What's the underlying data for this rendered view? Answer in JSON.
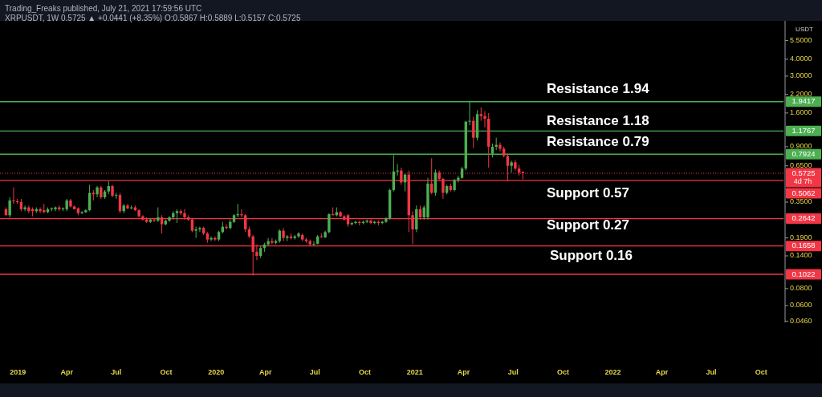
{
  "chart_data": {
    "type": "candlestick",
    "log": true,
    "xlim": [
      "2018-11-29",
      "2022-11-11"
    ],
    "xticks": [
      {
        "value": "2019-01-01",
        "label": "2019"
      },
      {
        "value": "2019-04-01",
        "label": "Apr"
      },
      {
        "value": "2019-07-01",
        "label": "Jul"
      },
      {
        "value": "2019-10-01",
        "label": "Oct"
      },
      {
        "value": "2020-01-01",
        "label": "2020"
      },
      {
        "value": "2020-04-01",
        "label": "Apr"
      },
      {
        "value": "2020-07-01",
        "label": "Jul"
      },
      {
        "value": "2020-10-01",
        "label": "Oct"
      },
      {
        "value": "2021-01-01",
        "label": "2021"
      },
      {
        "value": "2021-04-01",
        "label": "Apr"
      },
      {
        "value": "2021-07-01",
        "label": "Jul"
      },
      {
        "value": "2021-10-01",
        "label": "Oct"
      },
      {
        "value": "2022-01-01",
        "label": "2022"
      },
      {
        "value": "2022-04-01",
        "label": "Apr"
      },
      {
        "value": "2022-07-01",
        "label": "Jul"
      },
      {
        "value": "2022-10-01",
        "label": "Oct"
      }
    ],
    "ylim": [
      0.045,
      7.7
    ],
    "yticks": [
      {
        "value": 0.046,
        "label": "0.0460"
      },
      {
        "value": 0.06,
        "label": "0.0600"
      },
      {
        "value": 0.08,
        "label": "0.0800"
      },
      {
        "value": 0.14,
        "label": "0.1400"
      },
      {
        "value": 0.19,
        "label": "0.1900"
      },
      {
        "value": 0.35,
        "label": "0.3500"
      },
      {
        "value": 0.65,
        "label": "0.6500"
      },
      {
        "value": 0.9,
        "label": "0.9000"
      },
      {
        "value": 1.6,
        "label": "1.6000"
      },
      {
        "value": 2.2,
        "label": "2.2000"
      },
      {
        "value": 3,
        "label": "3.0000"
      },
      {
        "value": 4,
        "label": "4.0000"
      },
      {
        "value": 5.5,
        "label": "5.5000"
      }
    ],
    "x": [
      "2018-12-10",
      "2018-12-17",
      "2018-12-24",
      "2018-12-31",
      "2019-01-07",
      "2019-01-14",
      "2019-01-21",
      "2019-01-28",
      "2019-02-04",
      "2019-02-11",
      "2019-02-18",
      "2019-02-25",
      "2019-03-04",
      "2019-03-11",
      "2019-03-18",
      "2019-03-25",
      "2019-04-01",
      "2019-04-08",
      "2019-04-15",
      "2019-04-22",
      "2019-04-29",
      "2019-05-06",
      "2019-05-13",
      "2019-05-20",
      "2019-05-27",
      "2019-06-03",
      "2019-06-10",
      "2019-06-17",
      "2019-06-24",
      "2019-07-01",
      "2019-07-08",
      "2019-07-15",
      "2019-07-22",
      "2019-07-29",
      "2019-08-05",
      "2019-08-12",
      "2019-08-19",
      "2019-08-26",
      "2019-09-02",
      "2019-09-09",
      "2019-09-16",
      "2019-09-23",
      "2019-09-30",
      "2019-10-07",
      "2019-10-14",
      "2019-10-21",
      "2019-10-28",
      "2019-11-04",
      "2019-11-11",
      "2019-11-18",
      "2019-11-25",
      "2019-12-02",
      "2019-12-09",
      "2019-12-16",
      "2019-12-23",
      "2019-12-30",
      "2020-01-06",
      "2020-01-13",
      "2020-01-20",
      "2020-01-27",
      "2020-02-03",
      "2020-02-10",
      "2020-02-17",
      "2020-02-24",
      "2020-03-02",
      "2020-03-09",
      "2020-03-16",
      "2020-03-23",
      "2020-03-30",
      "2020-04-06",
      "2020-04-13",
      "2020-04-20",
      "2020-04-27",
      "2020-05-04",
      "2020-05-11",
      "2020-05-18",
      "2020-05-25",
      "2020-06-01",
      "2020-06-08",
      "2020-06-15",
      "2020-06-22",
      "2020-06-29",
      "2020-07-06",
      "2020-07-13",
      "2020-07-20",
      "2020-07-27",
      "2020-08-03",
      "2020-08-10",
      "2020-08-17",
      "2020-08-24",
      "2020-08-31",
      "2020-09-07",
      "2020-09-14",
      "2020-09-21",
      "2020-09-28",
      "2020-10-05",
      "2020-10-12",
      "2020-10-19",
      "2020-10-26",
      "2020-11-02",
      "2020-11-09",
      "2020-11-16",
      "2020-11-23",
      "2020-11-30",
      "2020-12-07",
      "2020-12-14",
      "2020-12-21",
      "2020-12-28",
      "2021-01-04",
      "2021-01-11",
      "2021-01-18",
      "2021-01-25",
      "2021-02-01",
      "2021-02-08",
      "2021-02-15",
      "2021-02-22",
      "2021-03-01",
      "2021-03-08",
      "2021-03-15",
      "2021-03-22",
      "2021-03-29",
      "2021-04-05",
      "2021-04-12",
      "2021-04-19",
      "2021-04-26",
      "2021-05-03",
      "2021-05-10",
      "2021-05-17",
      "2021-05-24",
      "2021-05-31",
      "2021-06-07",
      "2021-06-14",
      "2021-06-21",
      "2021-06-28",
      "2021-07-05",
      "2021-07-12",
      "2021-07-19"
    ],
    "ohlc": [
      [
        0.31,
        0.32,
        0.28,
        0.28
      ],
      [
        0.28,
        0.38,
        0.27,
        0.36
      ],
      [
        0.36,
        0.45,
        0.34,
        0.355
      ],
      [
        0.355,
        0.37,
        0.34,
        0.35
      ],
      [
        0.35,
        0.37,
        0.3,
        0.31
      ],
      [
        0.31,
        0.33,
        0.3,
        0.32
      ],
      [
        0.32,
        0.33,
        0.29,
        0.3
      ],
      [
        0.31,
        0.32,
        0.275,
        0.3
      ],
      [
        0.3,
        0.32,
        0.29,
        0.31
      ],
      [
        0.31,
        0.32,
        0.29,
        0.3
      ],
      [
        0.305,
        0.34,
        0.29,
        0.295
      ],
      [
        0.295,
        0.32,
        0.29,
        0.31
      ],
      [
        0.31,
        0.32,
        0.3,
        0.315
      ],
      [
        0.31,
        0.325,
        0.3,
        0.32
      ],
      [
        0.32,
        0.33,
        0.3,
        0.31
      ],
      [
        0.31,
        0.32,
        0.3,
        0.315
      ],
      [
        0.31,
        0.37,
        0.3,
        0.36
      ],
      [
        0.36,
        0.37,
        0.32,
        0.325
      ],
      [
        0.325,
        0.33,
        0.31,
        0.31
      ],
      [
        0.315,
        0.32,
        0.28,
        0.29
      ],
      [
        0.29,
        0.3,
        0.285,
        0.295
      ],
      [
        0.295,
        0.31,
        0.29,
        0.305
      ],
      [
        0.305,
        0.47,
        0.3,
        0.41
      ],
      [
        0.41,
        0.43,
        0.36,
        0.4
      ],
      [
        0.4,
        0.46,
        0.38,
        0.45
      ],
      [
        0.45,
        0.46,
        0.37,
        0.38
      ],
      [
        0.38,
        0.43,
        0.37,
        0.42
      ],
      [
        0.42,
        0.5,
        0.4,
        0.46
      ],
      [
        0.46,
        0.47,
        0.38,
        0.39
      ],
      [
        0.39,
        0.41,
        0.37,
        0.395
      ],
      [
        0.395,
        0.41,
        0.29,
        0.3
      ],
      [
        0.3,
        0.34,
        0.29,
        0.33
      ],
      [
        0.33,
        0.34,
        0.31,
        0.315
      ],
      [
        0.315,
        0.33,
        0.31,
        0.32
      ],
      [
        0.32,
        0.33,
        0.3,
        0.305
      ],
      [
        0.305,
        0.31,
        0.27,
        0.275
      ],
      [
        0.275,
        0.28,
        0.255,
        0.26
      ],
      [
        0.26,
        0.27,
        0.245,
        0.25
      ],
      [
        0.25,
        0.265,
        0.245,
        0.26
      ],
      [
        0.26,
        0.265,
        0.25,
        0.255
      ],
      [
        0.255,
        0.32,
        0.25,
        0.27
      ],
      [
        0.27,
        0.28,
        0.205,
        0.24
      ],
      [
        0.24,
        0.26,
        0.235,
        0.255
      ],
      [
        0.255,
        0.275,
        0.25,
        0.27
      ],
      [
        0.27,
        0.3,
        0.26,
        0.29
      ],
      [
        0.29,
        0.31,
        0.245,
        0.3
      ],
      [
        0.3,
        0.31,
        0.28,
        0.29
      ],
      [
        0.29,
        0.31,
        0.26,
        0.27
      ],
      [
        0.27,
        0.28,
        0.255,
        0.26
      ],
      [
        0.26,
        0.265,
        0.21,
        0.215
      ],
      [
        0.215,
        0.23,
        0.19,
        0.22
      ],
      [
        0.22,
        0.23,
        0.21,
        0.225
      ],
      [
        0.225,
        0.23,
        0.2,
        0.205
      ],
      [
        0.205,
        0.21,
        0.175,
        0.185
      ],
      [
        0.185,
        0.195,
        0.18,
        0.19
      ],
      [
        0.19,
        0.195,
        0.18,
        0.185
      ],
      [
        0.185,
        0.215,
        0.18,
        0.21
      ],
      [
        0.21,
        0.25,
        0.205,
        0.23
      ],
      [
        0.23,
        0.24,
        0.22,
        0.225
      ],
      [
        0.225,
        0.26,
        0.22,
        0.25
      ],
      [
        0.25,
        0.285,
        0.245,
        0.28
      ],
      [
        0.28,
        0.34,
        0.27,
        0.285
      ],
      [
        0.285,
        0.31,
        0.27,
        0.28
      ],
      [
        0.28,
        0.285,
        0.21,
        0.22
      ],
      [
        0.22,
        0.23,
        0.19,
        0.195
      ],
      [
        0.195,
        0.2,
        0.1,
        0.15
      ],
      [
        0.15,
        0.17,
        0.13,
        0.14
      ],
      [
        0.14,
        0.165,
        0.135,
        0.16
      ],
      [
        0.16,
        0.175,
        0.15,
        0.17
      ],
      [
        0.17,
        0.19,
        0.165,
        0.18
      ],
      [
        0.18,
        0.19,
        0.17,
        0.175
      ],
      [
        0.175,
        0.185,
        0.17,
        0.18
      ],
      [
        0.18,
        0.22,
        0.175,
        0.215
      ],
      [
        0.215,
        0.225,
        0.18,
        0.19
      ],
      [
        0.19,
        0.2,
        0.18,
        0.195
      ],
      [
        0.195,
        0.205,
        0.185,
        0.19
      ],
      [
        0.19,
        0.2,
        0.185,
        0.195
      ],
      [
        0.195,
        0.21,
        0.19,
        0.205
      ],
      [
        0.2,
        0.205,
        0.18,
        0.185
      ],
      [
        0.185,
        0.19,
        0.175,
        0.18
      ],
      [
        0.18,
        0.185,
        0.165,
        0.17
      ],
      [
        0.17,
        0.18,
        0.165,
        0.172
      ],
      [
        0.172,
        0.2,
        0.17,
        0.195
      ],
      [
        0.195,
        0.205,
        0.19,
        0.192
      ],
      [
        0.192,
        0.215,
        0.19,
        0.21
      ],
      [
        0.21,
        0.29,
        0.205,
        0.285
      ],
      [
        0.285,
        0.32,
        0.28,
        0.28
      ],
      [
        0.28,
        0.32,
        0.275,
        0.295
      ],
      [
        0.295,
        0.3,
        0.27,
        0.275
      ],
      [
        0.275,
        0.28,
        0.255,
        0.26
      ],
      [
        0.28,
        0.285,
        0.23,
        0.24
      ],
      [
        0.24,
        0.25,
        0.235,
        0.245
      ],
      [
        0.245,
        0.255,
        0.24,
        0.25
      ],
      [
        0.25,
        0.255,
        0.235,
        0.245
      ],
      [
        0.245,
        0.255,
        0.24,
        0.25
      ],
      [
        0.25,
        0.26,
        0.245,
        0.255
      ],
      [
        0.255,
        0.26,
        0.24,
        0.245
      ],
      [
        0.245,
        0.255,
        0.24,
        0.25
      ],
      [
        0.25,
        0.255,
        0.235,
        0.245
      ],
      [
        0.245,
        0.255,
        0.24,
        0.25
      ],
      [
        0.25,
        0.27,
        0.245,
        0.265
      ],
      [
        0.265,
        0.44,
        0.26,
        0.43
      ],
      [
        0.43,
        0.78,
        0.42,
        0.59
      ],
      [
        0.59,
        0.67,
        0.55,
        0.6
      ],
      [
        0.6,
        0.63,
        0.47,
        0.49
      ],
      [
        0.49,
        0.57,
        0.42,
        0.56
      ],
      [
        0.56,
        0.6,
        0.21,
        0.28
      ],
      [
        0.28,
        0.3,
        0.17,
        0.22
      ],
      [
        0.22,
        0.33,
        0.21,
        0.31
      ],
      [
        0.31,
        0.33,
        0.26,
        0.27
      ],
      [
        0.27,
        0.33,
        0.26,
        0.32
      ],
      [
        0.27,
        0.53,
        0.26,
        0.48
      ],
      [
        0.48,
        0.74,
        0.4,
        0.41
      ],
      [
        0.41,
        0.61,
        0.39,
        0.58
      ],
      [
        0.58,
        0.6,
        0.51,
        0.52
      ],
      [
        0.52,
        0.53,
        0.37,
        0.41
      ],
      [
        0.41,
        0.47,
        0.4,
        0.46
      ],
      [
        0.46,
        0.48,
        0.42,
        0.43
      ],
      [
        0.43,
        0.52,
        0.42,
        0.51
      ],
      [
        0.51,
        0.55,
        0.49,
        0.53
      ],
      [
        0.53,
        0.64,
        0.52,
        0.62
      ],
      [
        0.62,
        1.4,
        0.6,
        1.38
      ],
      [
        1.38,
        1.96,
        1.3,
        1.4
      ],
      [
        1.4,
        1.5,
        0.88,
        1.05
      ],
      [
        1.05,
        1.68,
        1,
        1.57
      ],
      [
        1.57,
        1.76,
        1.4,
        1.52
      ],
      [
        1.52,
        1.65,
        1.25,
        1.45
      ],
      [
        1.45,
        1.6,
        0.63,
        0.9
      ],
      [
        0.8,
        0.95,
        0.75,
        0.9
      ],
      [
        0.9,
        1.05,
        0.85,
        0.93
      ],
      [
        0.93,
        0.97,
        0.83,
        0.87
      ],
      [
        0.87,
        0.9,
        0.75,
        0.77
      ],
      [
        0.77,
        0.8,
        0.5,
        0.65
      ],
      [
        0.65,
        0.71,
        0.58,
        0.69
      ],
      [
        0.69,
        0.72,
        0.6,
        0.62
      ],
      [
        0.62,
        0.66,
        0.55,
        0.58
      ],
      [
        0.5867,
        0.5889,
        0.5157,
        0.5725
      ]
    ],
    "ref_lines": [
      {
        "axis": "y",
        "value": 1.9417,
        "label": "1.9417",
        "color": "#4caf50"
      },
      {
        "axis": "y",
        "value": 1.1767,
        "label": "1.1767",
        "color": "#4caf50"
      },
      {
        "axis": "y",
        "value": 0.7924,
        "label": "0.7924",
        "color": "#4caf50"
      },
      {
        "axis": "y",
        "value": 0.5725,
        "label": "0.5725",
        "color": "#f23645",
        "line_style": "dotted"
      },
      {
        "axis": "y",
        "value": 0.5062,
        "label": "0.5062",
        "color": "#f23645"
      },
      {
        "axis": "y",
        "value": 0.2642,
        "label": "0.2642",
        "color": "#f23645"
      },
      {
        "axis": "y",
        "value": 0.1658,
        "label": "0.1658",
        "color": "#f23645"
      },
      {
        "axis": "y",
        "value": 0.1022,
        "label": "0.1022",
        "color": "#f23645"
      }
    ],
    "annotations": [
      "Trading_Freaks published, July 21, 2021 17:59:56 UTC",
      "XRPUSDT, 1W  0.5725 ▲ +0.0441 (+8.35%)  O:0.5867  H:0.5889  L:0.5157  C:0.5725",
      "4d 7h",
      "USDT",
      "Resistance 1.94",
      "Resistance 1.18",
      "Resistance 0.79",
      "Support 0.57",
      "Support 0.27",
      "Support 0.16"
    ]
  }
}
